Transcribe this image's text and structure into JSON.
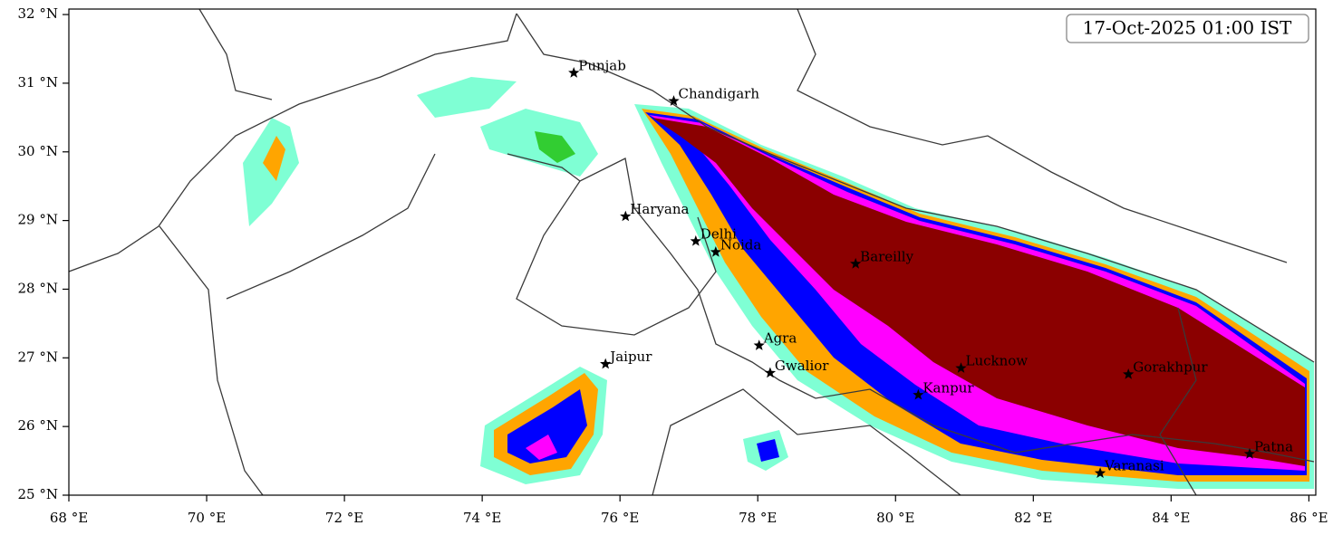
{
  "chart_data": {
    "type": "map",
    "title": "17-Oct-2025 01:00 IST",
    "xlim": [
      68,
      86.1
    ],
    "ylim": [
      25,
      32.08
    ],
    "xticks": [
      {
        "value": 68,
        "label": "68 °E"
      },
      {
        "value": 70,
        "label": "70 °E"
      },
      {
        "value": 72,
        "label": "72 °E"
      },
      {
        "value": 74,
        "label": "74 °E"
      },
      {
        "value": 76,
        "label": "76 °E"
      },
      {
        "value": 78,
        "label": "78 °E"
      },
      {
        "value": 80,
        "label": "80 °E"
      },
      {
        "value": 82,
        "label": "82 °E"
      },
      {
        "value": 84,
        "label": "84 °E"
      },
      {
        "value": 86,
        "label": "86 °E"
      }
    ],
    "yticks": [
      {
        "value": 25,
        "label": "25 °N"
      },
      {
        "value": 26,
        "label": "26 °N"
      },
      {
        "value": 27,
        "label": "27 °N"
      },
      {
        "value": 28,
        "label": "28 °N"
      },
      {
        "value": 29,
        "label": "29 °N"
      },
      {
        "value": 30,
        "label": "30 °N"
      },
      {
        "value": 31,
        "label": "31 °N"
      },
      {
        "value": 32,
        "label": "32 °N"
      }
    ],
    "cities": [
      {
        "name": "Punjab",
        "lon": 75.33,
        "lat": 31.15
      },
      {
        "name": "Chandigarh",
        "lon": 76.78,
        "lat": 30.74
      },
      {
        "name": "Haryana",
        "lon": 76.08,
        "lat": 29.06
      },
      {
        "name": "Delhi",
        "lon": 77.1,
        "lat": 28.7
      },
      {
        "name": "Noida",
        "lon": 77.39,
        "lat": 28.54
      },
      {
        "name": "Bareilly",
        "lon": 79.42,
        "lat": 28.37
      },
      {
        "name": "Agra",
        "lon": 78.02,
        "lat": 27.18
      },
      {
        "name": "Jaipur",
        "lon": 75.79,
        "lat": 26.91
      },
      {
        "name": "Gwalior",
        "lon": 78.18,
        "lat": 26.78
      },
      {
        "name": "Lucknow",
        "lon": 80.95,
        "lat": 26.85
      },
      {
        "name": "Kanpur",
        "lon": 80.33,
        "lat": 26.46
      },
      {
        "name": "Gorakhpur",
        "lon": 83.38,
        "lat": 26.76
      },
      {
        "name": "Varanasi",
        "lon": 82.97,
        "lat": 25.32
      },
      {
        "name": "Patna",
        "lon": 85.14,
        "lat": 25.6
      }
    ]
  }
}
